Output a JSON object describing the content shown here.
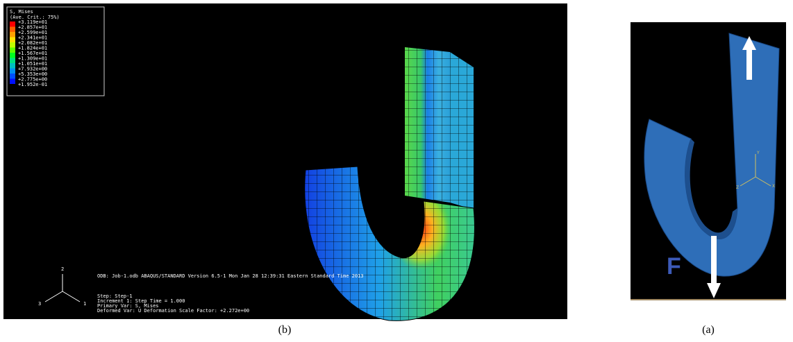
{
  "panel_b": {
    "legend": {
      "title": "S, Mises",
      "subtitle": "(Ave. Crit.: 75%)",
      "values": [
        "+3.119e+01",
        "+2.857e+01",
        "+2.599e+01",
        "+2.341e+01",
        "+2.082e+01",
        "+1.824e+01",
        "+1.567e+01",
        "+1.309e+01",
        "+1.051e+01",
        "+7.932e+00",
        "+5.353e+00",
        "+2.775e+00",
        "+1.952e-01"
      ]
    },
    "info": {
      "odb": "ODB: Job-1.odb    ABAQUS/STANDARD Version 6.5-1    Mon Jan 28 12:39:31 Eastern Standard Time 2013",
      "step": "Step: Step-1",
      "increment": "Increment     1: Step Time =     1.000",
      "primary": "Primary Var: S, Mises",
      "deformed": "Deformed Var: U   Deformation Scale Factor: +2.272e+00"
    },
    "triad": [
      "1",
      "2",
      "3"
    ],
    "caption": "(b)"
  },
  "panel_a": {
    "label": "F",
    "triad": [
      "Y",
      "X",
      "Z"
    ],
    "caption": "(a)"
  }
}
